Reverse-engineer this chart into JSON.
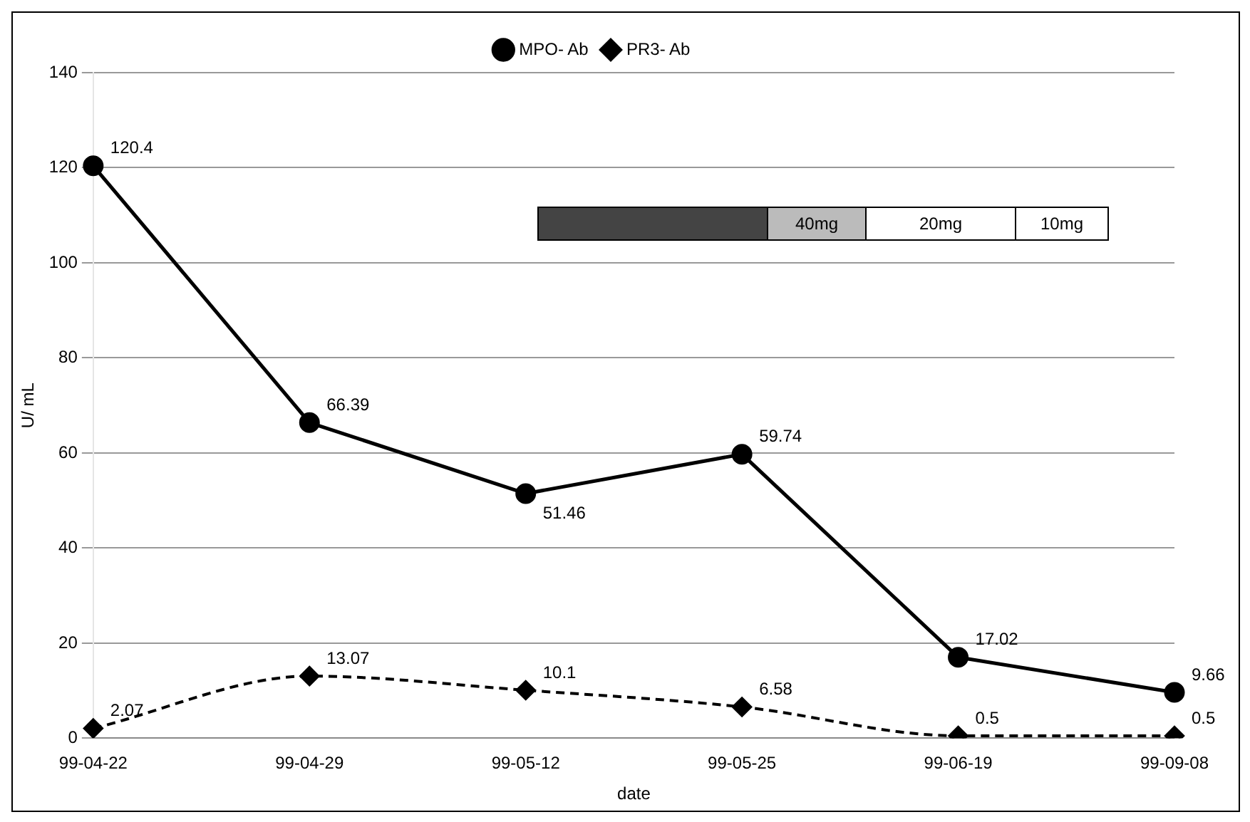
{
  "chart_data": {
    "type": "line",
    "xlabel": "date",
    "ylabel": "U/ mL",
    "categories": [
      "99-04-22",
      "99-04-29",
      "99-05-12",
      "99-05-25",
      "99-06-19",
      "99-09-08"
    ],
    "series": [
      {
        "name": "MPO- Ab",
        "color": "#000000",
        "values": [
          120.4,
          66.39,
          51.46,
          59.74,
          17.02,
          9.66
        ],
        "marker": "circle",
        "line_style": "solid"
      },
      {
        "name": "PR3- Ab",
        "color": "#000000",
        "values": [
          2.07,
          13.07,
          10.1,
          6.58,
          0.5,
          0.5
        ],
        "marker": "diamond",
        "line_style": "dashed"
      }
    ],
    "ylim": [
      0,
      140
    ],
    "yticks": [
      0,
      20,
      40,
      60,
      80,
      100,
      120,
      140
    ],
    "grid": "y",
    "legend": "top",
    "data_labels": true,
    "annotations": [
      "40mg",
      "20mg",
      "10mg"
    ]
  }
}
